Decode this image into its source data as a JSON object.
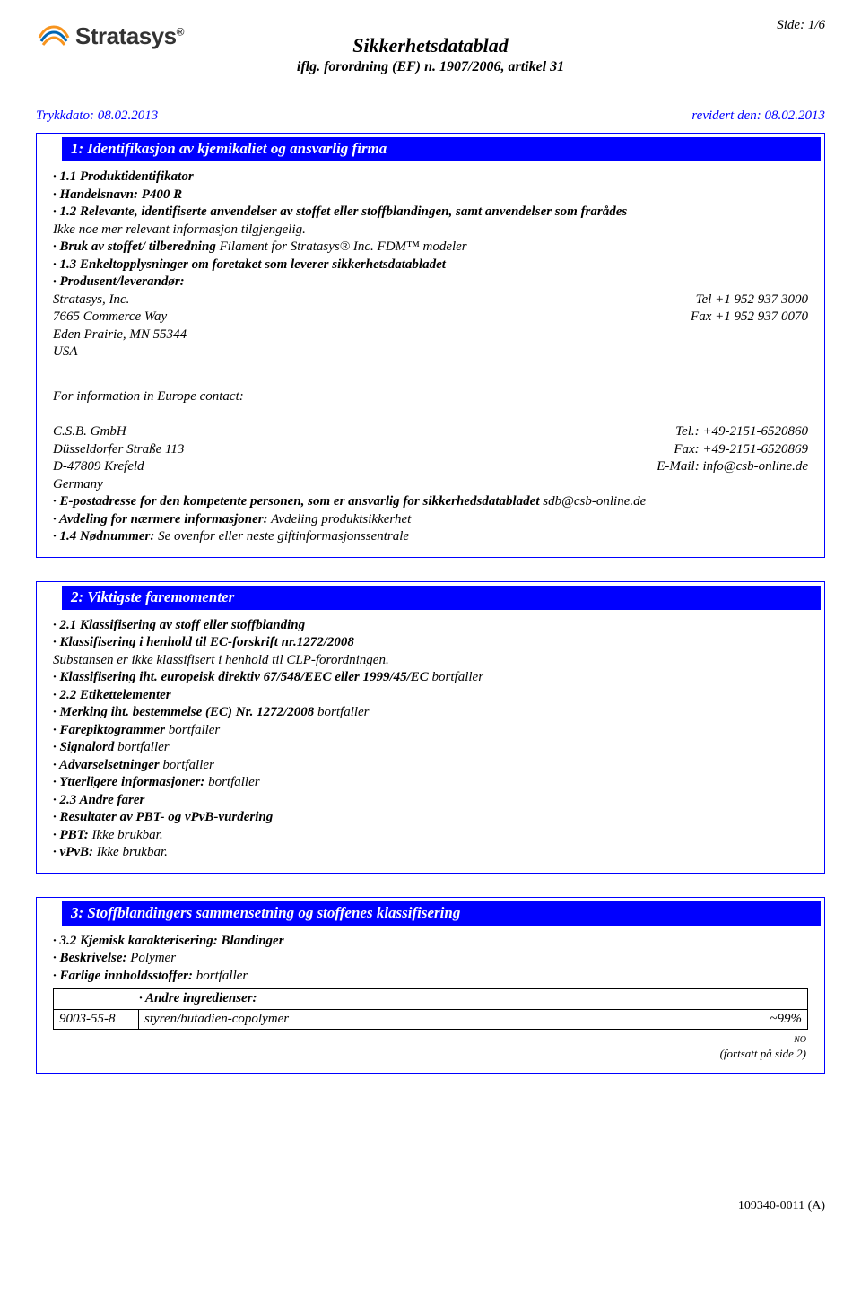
{
  "page_indicator": "Side: 1/6",
  "logo_text": "Stratasys",
  "doc_title": "Sikkerhetsdatablad",
  "doc_subtitle": "iflg. forordning (EF) n. 1907/2006, artikel 31",
  "print_date": "Trykkdato: 08.02.2013",
  "revised_date": "revidert den: 08.02.2013",
  "section1": {
    "title": "1: Identifikasjon av kjemikaliet og ansvarlig firma",
    "s11_label": "· 1.1 Produktidentifikator",
    "trade_label": "· Handelsnavn:",
    "trade_value": "P400 R",
    "s12_label": "· 1.2 Relevante, identifiserte anvendelser av stoffet eller stoffblandingen, samt anvendelser som frarådes",
    "s12_note": "Ikke noe mer relevant informasjon tilgjengelig.",
    "use_label": "· Bruk av stoffet/ tilberedning",
    "use_value": "Filament for Stratasys® Inc. FDM™ modeler",
    "s13_label": "· 1.3 Enkeltopplysninger om foretaket som leverer sikkerhetsdatabladet",
    "producer_label": "· Produsent/leverandør:",
    "producer_name": "Stratasys, Inc.",
    "producer_addr1": "7665 Commerce Way",
    "producer_addr2": "Eden Prairie, MN 55344",
    "producer_addr3": "USA",
    "producer_tel": "Tel +1 952 937 3000",
    "producer_fax": "Fax +1 952 937 0070",
    "eu_contact_intro": "For information in Europe contact:",
    "eu_name": "C.S.B. GmbH",
    "eu_addr1": "Düsseldorfer Straße 113",
    "eu_addr2": "D-47809 Krefeld",
    "eu_addr3": "Germany",
    "eu_tel": "Tel.: +49-2151-6520860",
    "eu_fax": "Fax: +49-2151-6520869",
    "eu_email": "E-Mail: info@csb-online.de",
    "email_resp_label": "· E-postadresse for den kompetente personen, som er ansvarlig for sikkerhedsdatabladet",
    "email_resp_value": "sdb@csb-online.de",
    "dept_label": "· Avdeling for nærmere informasjoner:",
    "dept_value": "Avdeling produktsikkerhet",
    "emergency_label": "· 1.4 Nødnummer:",
    "emergency_value": "Se ovenfor eller neste giftinformasjonssentrale"
  },
  "section2": {
    "title": "2: Viktigste faremomenter",
    "lines": [
      "· 2.1 Klassifisering av stoff eller stoffblanding",
      "· Klassifisering i henhold til EC-forskrift nr.1272/2008",
      "Substansen er ikke klassifisert i henhold til CLP-forordningen.",
      "· Klassifisering iht. europeisk direktiv 67/548/EEC eller 1999/45/EC bortfaller",
      "· 2.2 Etikettelementer",
      "· Merking iht. bestemmelse (EC) Nr. 1272/2008 bortfaller",
      "· Farepiktogrammer bortfaller",
      "· Signalord bortfaller",
      "· Advarselsetninger bortfaller",
      "· Ytterligere informasjoner: bortfaller",
      "· 2.3 Andre farer",
      "· Resultater av PBT- og vPvB-vurdering",
      "· PBT: Ikke brukbar.",
      "· vPvB: Ikke brukbar."
    ],
    "bold_prefixes": [
      "· 2.1 Klassifisering av stoff eller stoffblanding",
      "· Klassifisering i henhold til EC-forskrift nr.1272/2008",
      "· Klassifisering iht. europeisk direktiv 67/548/EEC eller 1999/45/EC",
      "· 2.2 Etikettelementer",
      "· Merking iht. bestemmelse (EC) Nr. 1272/2008",
      "· Farepiktogrammer",
      "· Signalord",
      "· Advarselsetninger",
      "· Ytterligere informasjoner:",
      "· 2.3 Andre farer",
      "· Resultater av PBT- og vPvB-vurdering",
      "· PBT:",
      "· vPvB:"
    ]
  },
  "section3": {
    "title": "3: Stoffblandingers sammensetning og stoffenes klassifisering",
    "s32_label": "· 3.2 Kjemisk karakterisering: Blandinger",
    "desc_label": "· Beskrivelse:",
    "desc_value": "Polymer",
    "hazardous_line": "· Farlige innholdsstoffer: bortfaller",
    "ingredients_header": "· Andre ingredienser:",
    "row_cas": "9003-55-8",
    "row_name": "styren/butadien-copolymer",
    "row_pct": "~99%",
    "cont_tiny": "NO",
    "cont_text": "(fortsatt på side 2)"
  },
  "footer_code": "109340-0011 (A)"
}
